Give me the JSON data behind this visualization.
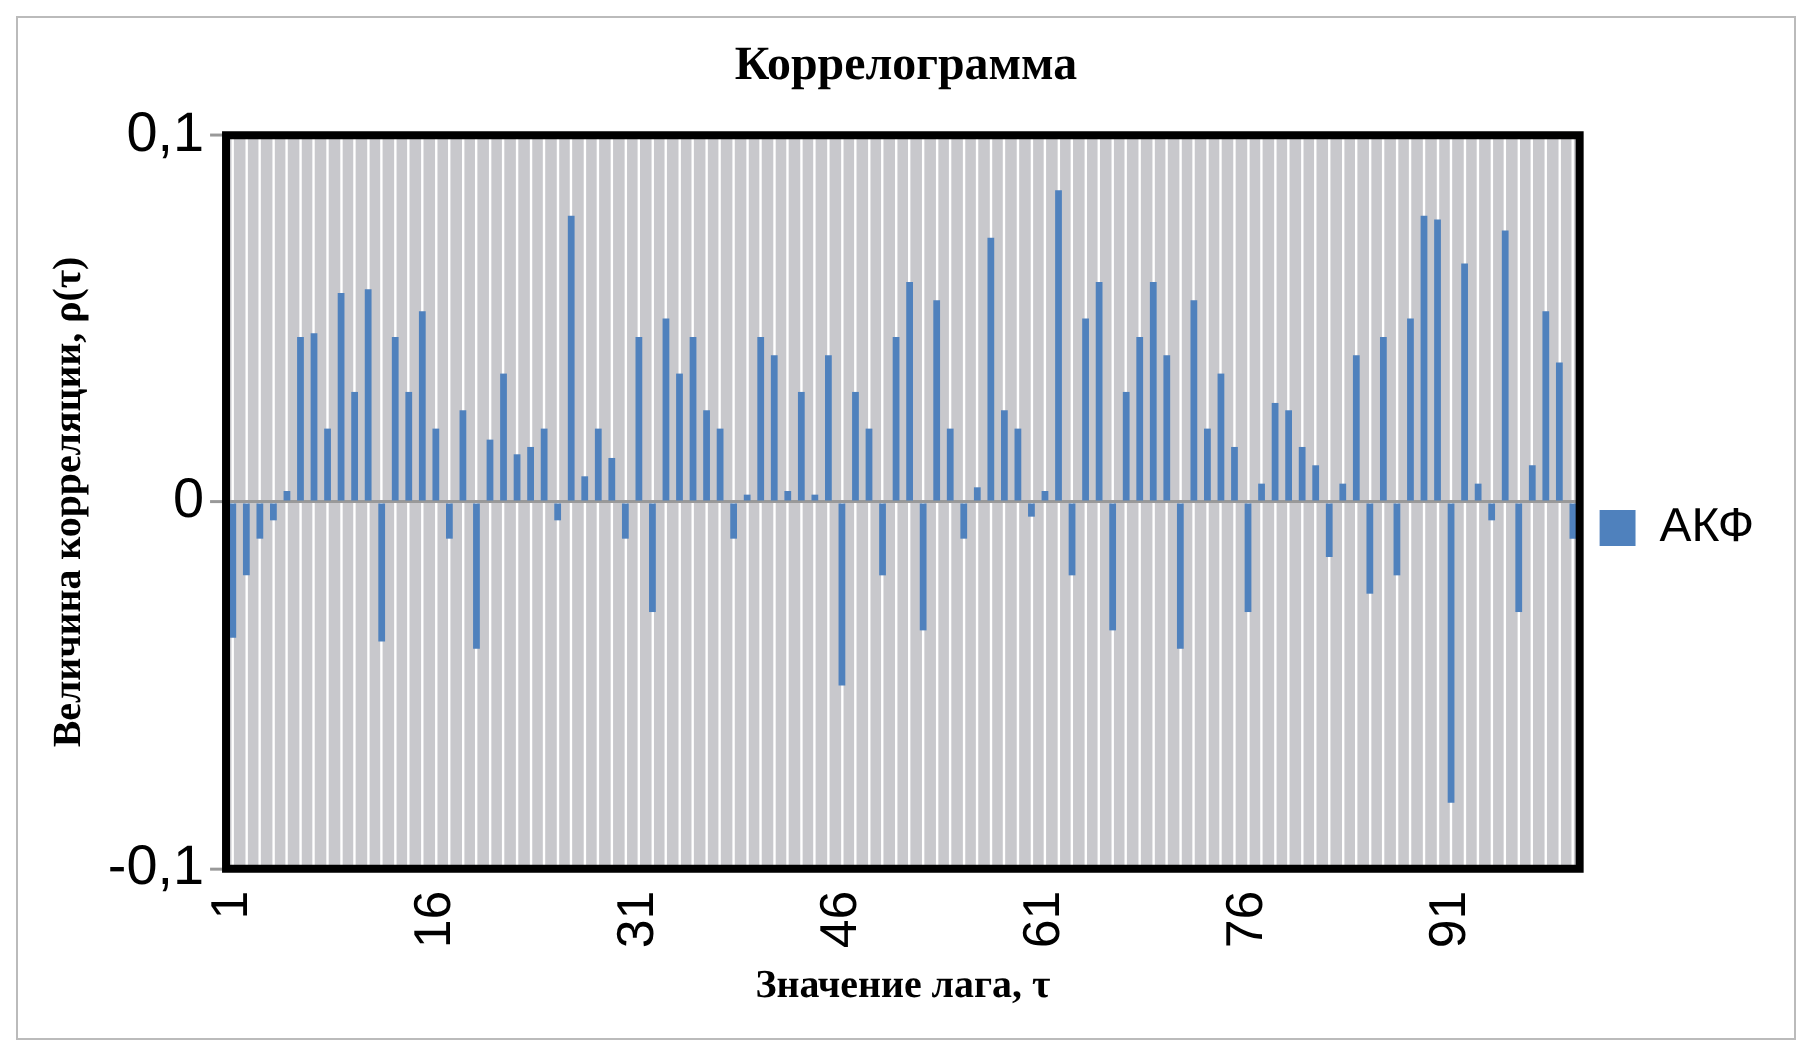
{
  "chart_data": {
    "type": "bar",
    "title": "Коррелограмма",
    "xlabel": "Значение лага, τ",
    "ylabel": "Величина корреляции, ρ(τ)",
    "categories": [
      "1",
      null,
      null,
      null,
      null,
      null,
      null,
      null,
      null,
      null,
      null,
      null,
      null,
      null,
      null,
      "16",
      null,
      null,
      null,
      null,
      null,
      null,
      null,
      null,
      null,
      null,
      null,
      null,
      null,
      null,
      "31",
      null,
      null,
      null,
      null,
      null,
      null,
      null,
      null,
      null,
      null,
      null,
      null,
      null,
      null,
      "46",
      null,
      null,
      null,
      null,
      null,
      null,
      null,
      null,
      null,
      null,
      null,
      null,
      null,
      null,
      "61",
      null,
      null,
      null,
      null,
      null,
      null,
      null,
      null,
      null,
      null,
      null,
      null,
      null,
      null,
      "76",
      null,
      null,
      null,
      null,
      null,
      null,
      null,
      null,
      null,
      null,
      null,
      null,
      null,
      null,
      "91",
      null,
      null,
      null,
      null,
      null,
      null,
      null,
      null,
      null
    ],
    "series": [
      {
        "name": "АКФ",
        "color": "#4f81bd",
        "values": [
          -0.037,
          -0.02,
          -0.01,
          -0.005,
          0.003,
          0.045,
          0.046,
          0.02,
          0.057,
          0.03,
          0.058,
          -0.038,
          0.045,
          0.03,
          0.052,
          0.02,
          -0.01,
          0.025,
          -0.04,
          0.017,
          0.035,
          0.013,
          0.015,
          0.02,
          -0.005,
          0.078,
          0.007,
          0.02,
          0.012,
          -0.01,
          0.045,
          -0.03,
          0.05,
          0.035,
          0.045,
          0.025,
          0.02,
          -0.01,
          0.002,
          0.045,
          0.04,
          0.003,
          0.03,
          0.002,
          0.04,
          -0.05,
          0.03,
          0.02,
          -0.02,
          0.045,
          0.06,
          -0.035,
          0.055,
          0.02,
          -0.01,
          0.004,
          0.072,
          0.025,
          0.02,
          -0.004,
          0.003,
          0.085,
          -0.02,
          0.05,
          0.06,
          -0.035,
          0.03,
          0.045,
          0.06,
          0.04,
          -0.04,
          0.055,
          0.02,
          0.035,
          0.015,
          -0.03,
          0.005,
          0.027,
          0.025,
          0.015,
          0.01,
          -0.015,
          0.005,
          0.04,
          -0.025,
          0.045,
          -0.02,
          0.05,
          0.078,
          0.077,
          -0.082,
          0.065,
          0.005,
          -0.005,
          0.074,
          -0.03,
          0.01,
          0.052,
          0.038,
          -0.01
        ]
      }
    ],
    "ylim": [
      -0.1,
      0.1
    ],
    "yticks": [
      {
        "value": -0.1,
        "label": "-0,1"
      },
      0,
      {
        "value": 0.1,
        "label": "0,1"
      }
    ],
    "grid": true,
    "legend": "right"
  }
}
